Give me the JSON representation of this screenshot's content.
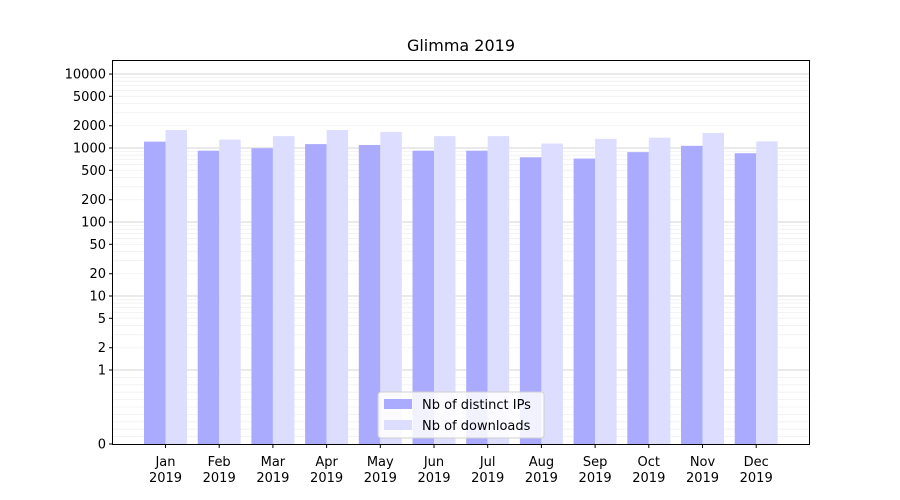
{
  "chart_data": {
    "type": "bar",
    "title": "Glimma 2019",
    "xlabel": "",
    "ylabel": "",
    "yscale": "symlog",
    "ylim": [
      0,
      15000
    ],
    "yticks": [
      0,
      1,
      2,
      5,
      10,
      20,
      50,
      100,
      200,
      500,
      1000,
      2000,
      5000,
      10000
    ],
    "ytick_labels": [
      "0",
      "1",
      "2",
      "5",
      "10",
      "20",
      "50",
      "100",
      "200",
      "500",
      "1000",
      "2000",
      "5000",
      "10000"
    ],
    "grid": true,
    "legend_position": "bottom-center",
    "categories": [
      "Jan\n2019",
      "Feb\n2019",
      "Mar\n2019",
      "Apr\n2019",
      "May\n2019",
      "Jun\n2019",
      "Jul\n2019",
      "Aug\n2019",
      "Sep\n2019",
      "Oct\n2019",
      "Nov\n2019",
      "Dec\n2019"
    ],
    "series": [
      {
        "name": "Nb of distinct IPs",
        "color": "#aaaaff",
        "values": [
          1220,
          920,
          990,
          1130,
          1100,
          920,
          920,
          750,
          720,
          880,
          1070,
          850
        ]
      },
      {
        "name": "Nb of downloads",
        "color": "#ddddff",
        "values": [
          1750,
          1300,
          1450,
          1750,
          1650,
          1450,
          1450,
          1150,
          1330,
          1380,
          1600,
          1230
        ]
      }
    ]
  }
}
